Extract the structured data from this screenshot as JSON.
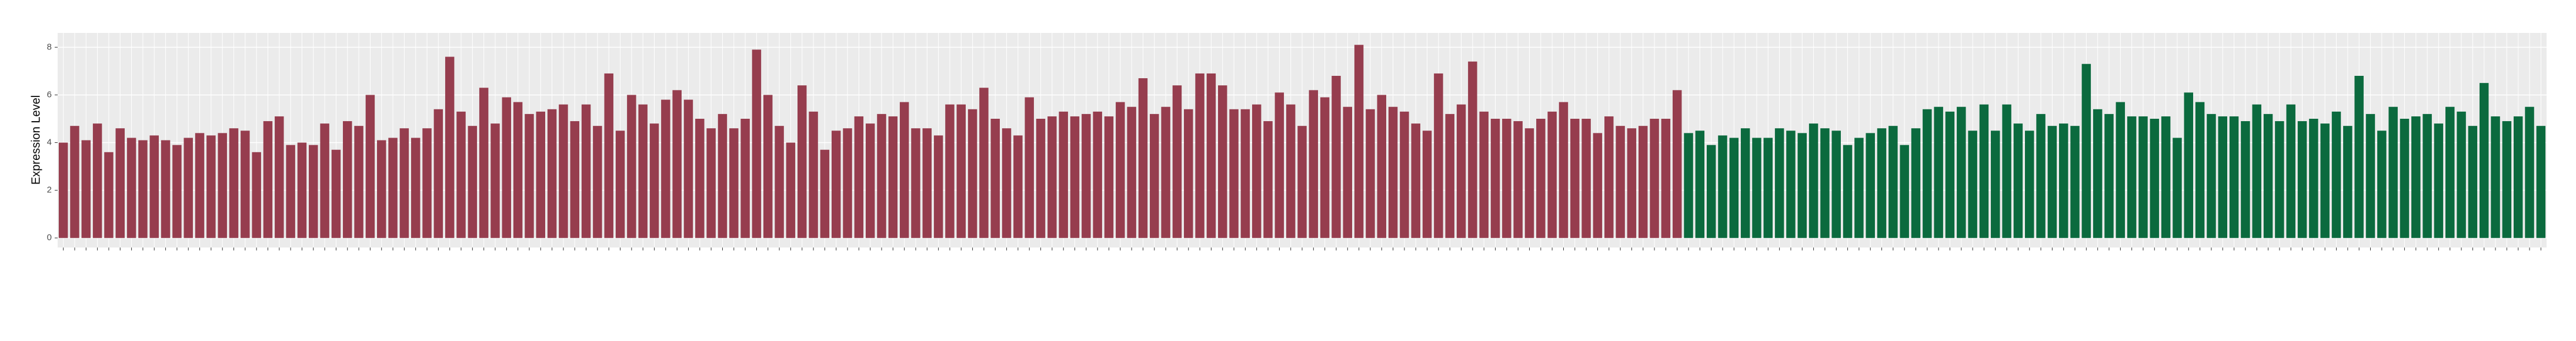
{
  "chart_data": {
    "type": "bar",
    "y_label": "Expression Level",
    "ylim": [
      -0.4,
      8.6
    ],
    "yticks": [
      0,
      2,
      4,
      6,
      8
    ],
    "grid": true,
    "categories": [
      null,
      null,
      null,
      null,
      null,
      null,
      null,
      null,
      null,
      null,
      null,
      null,
      null,
      null,
      null,
      null,
      null,
      null,
      null,
      null,
      null,
      null,
      null,
      null,
      null,
      null,
      null,
      null,
      null,
      null,
      null,
      null,
      null,
      null,
      null,
      null,
      null,
      null,
      null,
      null,
      null,
      null,
      null,
      null,
      null,
      null,
      null,
      null,
      null,
      null,
      null,
      null,
      null,
      null,
      null,
      null,
      null,
      null,
      null,
      null,
      null,
      null,
      null,
      null,
      null,
      null,
      null,
      null,
      null,
      null,
      null,
      null,
      null,
      null,
      null,
      null,
      null,
      null,
      null,
      null,
      null,
      null,
      null,
      null,
      null,
      null,
      null,
      null,
      null,
      null,
      null,
      null,
      null,
      null,
      null,
      null,
      null,
      null,
      null,
      null,
      null,
      null,
      null,
      null,
      null,
      null,
      null,
      null,
      null,
      null,
      null,
      null,
      null,
      null,
      null,
      null,
      null,
      null,
      null,
      null,
      null,
      null,
      null,
      null,
      null,
      null,
      null,
      null,
      null,
      null,
      null,
      null,
      null,
      null,
      null,
      null,
      null,
      null,
      null,
      null,
      null,
      null,
      null,
      null,
      null,
      null,
      null,
      null,
      null,
      null,
      null,
      null,
      null,
      null,
      null,
      null,
      null,
      null,
      null,
      null,
      null,
      null,
      null,
      null,
      null,
      null,
      null,
      null,
      null,
      null,
      null,
      null,
      null,
      null,
      null,
      null,
      null,
      null,
      null,
      null,
      null,
      null,
      null,
      null,
      null,
      null,
      null,
      null,
      null,
      null,
      null,
      null,
      null,
      null,
      null,
      null,
      null,
      null,
      null,
      null,
      null,
      null,
      null,
      null,
      null,
      null,
      null,
      null,
      null,
      null,
      null,
      null,
      null,
      null,
      null,
      null,
      null,
      null,
      null
    ],
    "series": [
      {
        "color": "#963d4e",
        "values": [
          4.0,
          4.7,
          4.1,
          4.8,
          3.6,
          4.6,
          4.2,
          4.1,
          4.3,
          4.1,
          3.9,
          4.2,
          4.4,
          4.3,
          4.4,
          4.6,
          4.5,
          3.6,
          4.9,
          5.1,
          3.9,
          4.0,
          3.9,
          4.8,
          3.7,
          4.9,
          4.7,
          6.0,
          4.1,
          4.2,
          4.6,
          4.2,
          4.6,
          5.4,
          7.6,
          5.3,
          4.7,
          6.3,
          4.8,
          5.9,
          5.7,
          5.2,
          5.3,
          5.4,
          5.6,
          4.9,
          5.6,
          4.7,
          6.9,
          4.5,
          6.0,
          5.6,
          4.8,
          5.8,
          6.2,
          5.8,
          5.0,
          4.6,
          5.2,
          4.6,
          5.0,
          7.9,
          6.0,
          4.7,
          4.0,
          6.4,
          5.3,
          3.7,
          4.5,
          4.6,
          5.1,
          4.8,
          5.2,
          5.1,
          5.7,
          4.6,
          4.6,
          4.3,
          5.6,
          5.6,
          5.4,
          6.3,
          5.0,
          4.6,
          4.3,
          5.9,
          5.0,
          5.1,
          5.3,
          5.1,
          5.2,
          5.3,
          5.1,
          5.7,
          5.5,
          6.7,
          5.2,
          5.5,
          6.4,
          5.4,
          6.9,
          6.9,
          6.4,
          5.4,
          5.4,
          5.6,
          4.9,
          6.1,
          5.6,
          4.7,
          6.2,
          5.9,
          6.8,
          5.5,
          8.1,
          5.4,
          6.0,
          5.5,
          5.3,
          4.8,
          4.5,
          6.9,
          5.2,
          5.6,
          7.4,
          5.3,
          5.0,
          5.0,
          4.9,
          4.6,
          5.0,
          5.3,
          5.7,
          5.0,
          5.0,
          4.4,
          5.1,
          4.7,
          4.6,
          4.7,
          5.0,
          5.0,
          6.2,
          null,
          null,
          null,
          null,
          null,
          null,
          null,
          null,
          null,
          null,
          null,
          null,
          null,
          null,
          null,
          null,
          null,
          null,
          null,
          null,
          null,
          null,
          null,
          null,
          null,
          null,
          null,
          null,
          null,
          null,
          null,
          null,
          null,
          null,
          null,
          null,
          null,
          null,
          null,
          null,
          null,
          null,
          null,
          null,
          null,
          null,
          null,
          null,
          null,
          null,
          null,
          null,
          null,
          null,
          null,
          null,
          null,
          null,
          null,
          null,
          null,
          null,
          null,
          null,
          null,
          null,
          null,
          null,
          null,
          null,
          null,
          null,
          null,
          null,
          null,
          null
        ]
      },
      {
        "color": "#0b6a3e",
        "values": [
          null,
          null,
          null,
          null,
          null,
          null,
          null,
          null,
          null,
          null,
          null,
          null,
          null,
          null,
          null,
          null,
          null,
          null,
          null,
          null,
          null,
          null,
          null,
          null,
          null,
          null,
          null,
          null,
          null,
          null,
          null,
          null,
          null,
          null,
          null,
          null,
          null,
          null,
          null,
          null,
          null,
          null,
          null,
          null,
          null,
          null,
          null,
          null,
          null,
          null,
          null,
          null,
          null,
          null,
          null,
          null,
          null,
          null,
          null,
          null,
          null,
          null,
          null,
          null,
          null,
          null,
          null,
          null,
          null,
          null,
          null,
          null,
          null,
          null,
          null,
          null,
          null,
          null,
          null,
          null,
          null,
          null,
          null,
          null,
          null,
          null,
          null,
          null,
          null,
          null,
          null,
          null,
          null,
          null,
          null,
          null,
          null,
          null,
          null,
          null,
          null,
          null,
          null,
          null,
          null,
          null,
          null,
          null,
          null,
          null,
          null,
          null,
          null,
          null,
          null,
          null,
          null,
          null,
          null,
          null,
          null,
          null,
          null,
          null,
          null,
          null,
          null,
          null,
          null,
          null,
          null,
          null,
          null,
          null,
          null,
          null,
          null,
          null,
          null,
          null,
          null,
          null,
          null,
          4.4,
          4.5,
          3.9,
          4.3,
          4.2,
          4.6,
          4.2,
          4.2,
          4.6,
          4.5,
          4.4,
          4.8,
          4.6,
          4.5,
          3.9,
          4.2,
          4.4,
          4.6,
          4.7,
          3.9,
          4.6,
          5.4,
          5.5,
          5.3,
          5.5,
          4.5,
          5.6,
          4.5,
          5.6,
          4.8,
          4.5,
          5.2,
          4.7,
          4.8,
          4.7,
          7.3,
          5.4,
          5.2,
          5.7,
          5.1,
          5.1,
          5.0,
          5.1,
          4.2,
          6.1,
          5.7,
          5.2,
          5.1,
          5.1,
          4.9,
          5.6,
          5.2,
          4.9,
          5.6,
          4.9,
          5.0,
          4.8,
          5.3,
          4.7,
          6.8,
          5.2,
          4.5,
          5.5,
          5.0,
          5.1,
          5.2,
          4.8,
          5.5,
          5.3,
          4.7,
          6.5,
          5.1,
          4.9,
          5.1,
          5.5,
          4.7
        ]
      }
    ]
  }
}
